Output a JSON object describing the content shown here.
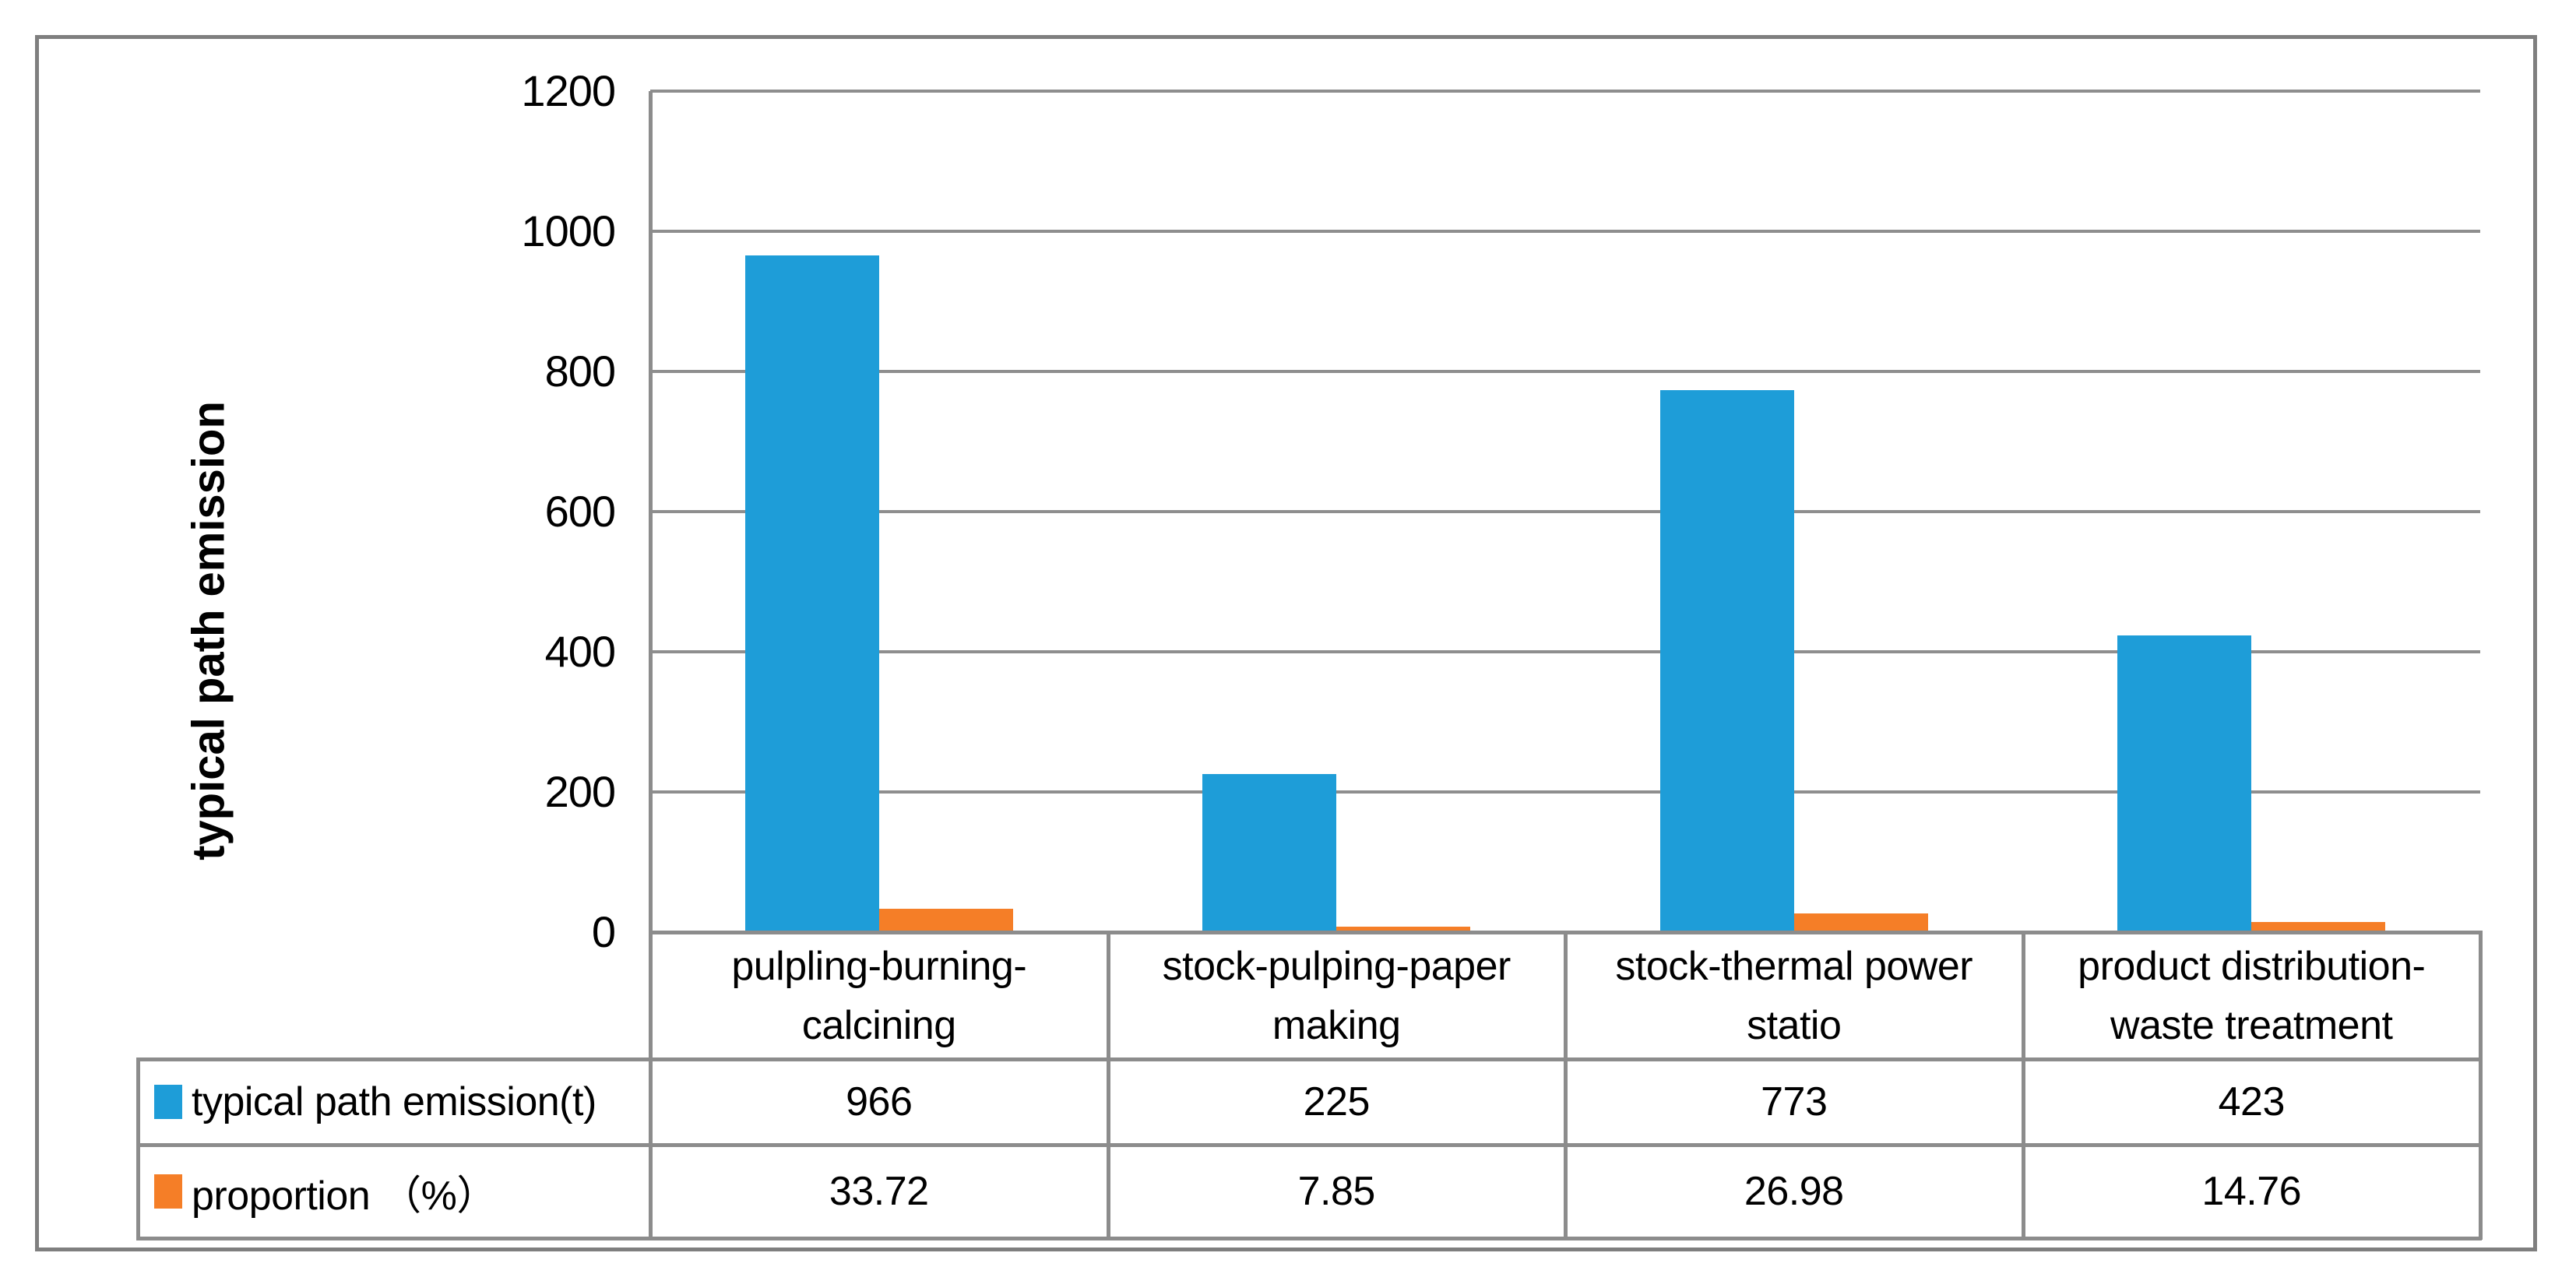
{
  "colors": {
    "emission_series": "#1E9DD8",
    "proportion_series": "#F57E27",
    "gridline": "#8E8E8E",
    "table_border": "#8C8C8C",
    "figure_border": "#7F7F7F",
    "text": "#000000",
    "background": "#FFFFFF"
  },
  "y_axis": {
    "title": "typical path emission",
    "tick_labels": [
      "1200",
      "1000",
      "800",
      "600",
      "400",
      "200",
      "0"
    ],
    "min": 0,
    "max": 1200,
    "step": 200
  },
  "chart_data": {
    "type": "bar",
    "title": "",
    "xlabel": "",
    "ylabel": "typical path emission",
    "ylim": [
      0,
      1200
    ],
    "grid": "horizontal",
    "legend_position": "table-row-headers",
    "categories": [
      "pulpling-burning-calcining",
      "stock-pulping-paper making",
      "stock-thermal power statio",
      "product distribution-waste treatment"
    ],
    "series": [
      {
        "name": "typical path emission(t)",
        "color": "#1E9DD8",
        "values": [
          966,
          225,
          773,
          423
        ]
      },
      {
        "name": "proportion （%）",
        "color": "#F57E27",
        "values": [
          33.72,
          7.85,
          26.98,
          14.76
        ]
      }
    ]
  },
  "table": {
    "category_cells": [
      [
        "pulpling-burning-",
        "calcining"
      ],
      [
        "stock-pulping-paper",
        "making"
      ],
      [
        "stock-thermal power",
        "statio"
      ],
      [
        "product distribution-",
        "waste treatment"
      ]
    ],
    "rows": [
      {
        "legend_label": "typical path emission(t)",
        "legend_color": "#1E9DD8",
        "values": [
          "966",
          "225",
          "773",
          "423"
        ]
      },
      {
        "legend_label": "proportion （%）",
        "legend_color": "#F57E27",
        "values": [
          "33.72",
          "7.85",
          "26.98",
          "14.76"
        ]
      }
    ]
  }
}
